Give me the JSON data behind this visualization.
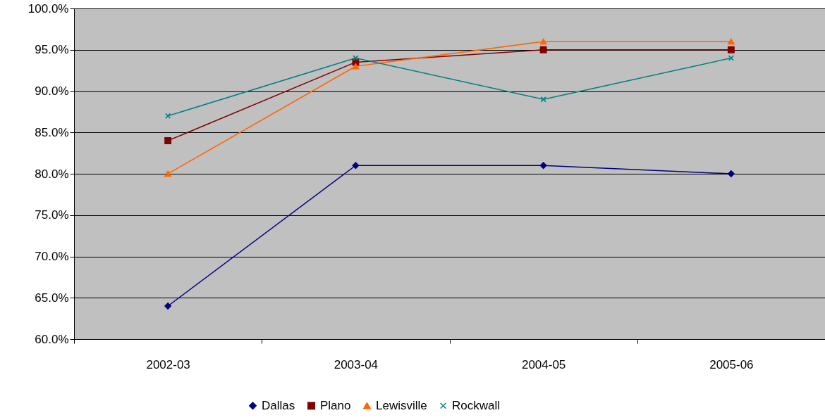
{
  "chart_data": {
    "type": "line",
    "categories": [
      "2002-03",
      "2003-04",
      "2004-05",
      "2005-06"
    ],
    "series": [
      {
        "name": "Dallas",
        "color": "#000080",
        "marker": "diamond",
        "values": [
          64,
          81,
          81,
          80
        ]
      },
      {
        "name": "Plano",
        "color": "#800000",
        "marker": "square",
        "values": [
          84,
          93.5,
          95,
          95
        ]
      },
      {
        "name": "Lewisville",
        "color": "#ff6600",
        "marker": "triangle",
        "values": [
          80,
          93,
          96,
          96
        ]
      },
      {
        "name": "Rockwall",
        "color": "#008080",
        "marker": "cross",
        "values": [
          87,
          94,
          89,
          94
        ]
      }
    ],
    "ylim": [
      60,
      100
    ],
    "yticks": [
      {
        "value": 60,
        "label": "60.0%"
      },
      {
        "value": 65,
        "label": "65.0%"
      },
      {
        "value": 70,
        "label": "70.0%"
      },
      {
        "value": 75,
        "label": "75.0%"
      },
      {
        "value": 80,
        "label": "80.0%"
      },
      {
        "value": 85,
        "label": "85.0%"
      },
      {
        "value": 90,
        "label": "90.0%"
      },
      {
        "value": 95,
        "label": "95.0%"
      },
      {
        "value": 100,
        "label": "100.0%"
      }
    ],
    "grid": "y",
    "legend": "bottom"
  }
}
